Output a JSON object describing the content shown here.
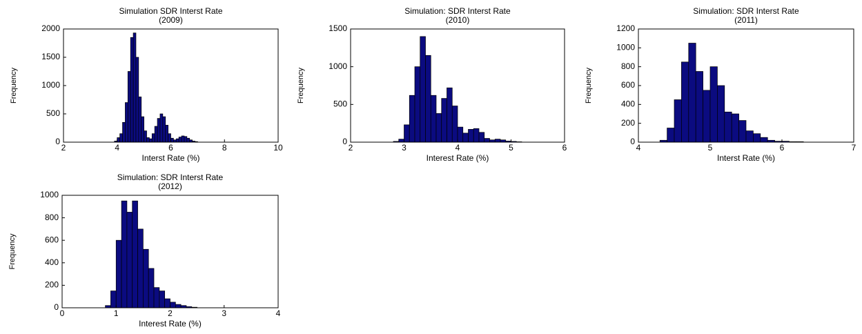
{
  "chart_data": [
    {
      "type": "histogram",
      "title": "Simulation SDR Interst Rate",
      "subtitle": "(2009)",
      "xlabel": "Interst Rate (%)",
      "ylabel": "Frequency",
      "color": "#0b0b80",
      "bins": [
        3.9,
        4.0,
        4.1,
        4.2,
        4.3,
        4.4,
        4.5,
        4.6,
        4.7,
        4.8,
        4.9,
        5.0,
        5.1,
        5.2,
        5.3,
        5.4,
        5.5,
        5.6,
        5.7,
        5.8,
        5.9,
        6.0,
        6.1,
        6.2,
        6.3,
        6.4,
        6.5,
        6.6,
        6.7,
        6.8,
        6.9,
        7.0
      ],
      "counts": [
        20,
        80,
        150,
        350,
        700,
        1250,
        1850,
        1930,
        1500,
        800,
        450,
        200,
        80,
        60,
        150,
        280,
        420,
        500,
        450,
        300,
        150,
        70,
        40,
        60,
        90,
        110,
        100,
        70,
        40,
        20,
        10
      ],
      "xlim": [
        2,
        10
      ],
      "xticks": [
        2,
        4,
        6,
        8,
        10
      ],
      "ylim": [
        0,
        2000
      ],
      "yticks": [
        0,
        500,
        1000,
        1500,
        2000
      ]
    },
    {
      "type": "histogram",
      "title": "Simulation: SDR Interst Rate",
      "subtitle": "(2010)",
      "xlabel": "Interest Rate (%)",
      "ylabel": "Frequency",
      "color": "#0b0b80",
      "bins": [
        2.8,
        2.9,
        3.0,
        3.1,
        3.2,
        3.3,
        3.4,
        3.5,
        3.6,
        3.7,
        3.8,
        3.9,
        4.0,
        4.1,
        4.2,
        4.3,
        4.4,
        4.5,
        4.6,
        4.7,
        4.8,
        4.9,
        5.0,
        5.1,
        5.2
      ],
      "counts": [
        10,
        40,
        230,
        620,
        1000,
        1400,
        1150,
        620,
        380,
        580,
        720,
        480,
        200,
        120,
        170,
        180,
        130,
        50,
        30,
        40,
        30,
        15,
        10,
        5
      ],
      "xlim": [
        2,
        6
      ],
      "xticks": [
        2,
        3,
        4,
        5,
        6
      ],
      "ylim": [
        0,
        1500
      ],
      "yticks": [
        0,
        500,
        1000,
        1500
      ]
    },
    {
      "type": "histogram",
      "title": "Simulation: SDR Interst Rate",
      "subtitle": "(2011)",
      "xlabel": "Interst Rate (%)",
      "ylabel": "Frequency",
      "color": "#0b0b80",
      "bins": [
        4.3,
        4.4,
        4.5,
        4.6,
        4.7,
        4.8,
        4.9,
        5.0,
        5.1,
        5.2,
        5.3,
        5.4,
        5.5,
        5.6,
        5.7,
        5.8,
        5.9,
        6.0,
        6.1,
        6.2,
        6.3
      ],
      "counts": [
        20,
        150,
        450,
        850,
        1050,
        750,
        550,
        800,
        600,
        320,
        300,
        230,
        120,
        90,
        50,
        20,
        10,
        10,
        5,
        5
      ],
      "xlim": [
        4,
        7
      ],
      "xticks": [
        4,
        5,
        6,
        7
      ],
      "ylim": [
        0,
        1200
      ],
      "yticks": [
        0,
        200,
        400,
        600,
        800,
        1000,
        1200
      ]
    },
    {
      "type": "histogram",
      "title": "Simulation: SDR Interst Rate",
      "subtitle": "(2012)",
      "xlabel": "Interest Rate (%)",
      "ylabel": "Frequency",
      "color": "#0b0b80",
      "bins": [
        0.8,
        0.9,
        1.0,
        1.1,
        1.2,
        1.3,
        1.4,
        1.5,
        1.6,
        1.7,
        1.8,
        1.9,
        2.0,
        2.1,
        2.2,
        2.3,
        2.4,
        2.5
      ],
      "counts": [
        20,
        150,
        600,
        950,
        850,
        950,
        700,
        520,
        350,
        180,
        150,
        80,
        50,
        30,
        20,
        10,
        5
      ],
      "xlim": [
        0,
        4
      ],
      "xticks": [
        0,
        1,
        2,
        3,
        4
      ],
      "ylim": [
        0,
        1000
      ],
      "yticks": [
        0,
        200,
        400,
        600,
        800,
        1000
      ]
    }
  ]
}
